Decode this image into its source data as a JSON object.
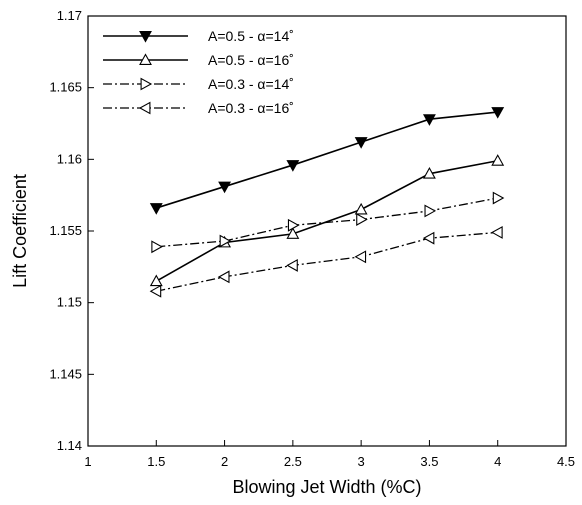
{
  "chart_data": {
    "type": "line",
    "xlabel": "Blowing Jet Width (%C)",
    "ylabel": "Lift Coefficient",
    "xlim": [
      1,
      4.5
    ],
    "ylim": [
      1.14,
      1.17
    ],
    "x_ticks": [
      "1",
      "1.5",
      "2",
      "2.5",
      "3",
      "3.5",
      "4",
      "4.5"
    ],
    "y_ticks": [
      "1.14",
      "1.145",
      "1.15",
      "1.155",
      "1.16",
      "1.165",
      "1.17"
    ],
    "grid": false,
    "legend_position": "top-left",
    "x": [
      1.5,
      2,
      2.5,
      3,
      3.5,
      4
    ],
    "series": [
      {
        "name": "A=0.5 - α=14˚",
        "values": [
          1.1566,
          1.1581,
          1.1596,
          1.1612,
          1.1628,
          1.1633
        ],
        "line": "solid",
        "marker": "triangle-down",
        "filled": true
      },
      {
        "name": "A=0.5 - α=16˚",
        "values": [
          1.1515,
          1.1542,
          1.1548,
          1.1565,
          1.159,
          1.1599
        ],
        "line": "solid",
        "marker": "triangle-up",
        "filled": false
      },
      {
        "name": "A=0.3 - α=14˚",
        "values": [
          1.1539,
          1.1543,
          1.1554,
          1.1558,
          1.1564,
          1.1573
        ],
        "line": "dashdot",
        "marker": "triangle-right",
        "filled": false
      },
      {
        "name": "A=0.3 - α=16˚",
        "values": [
          1.1508,
          1.1518,
          1.1526,
          1.1532,
          1.1545,
          1.1549
        ],
        "line": "dashdot",
        "marker": "triangle-left",
        "filled": false
      }
    ]
  }
}
